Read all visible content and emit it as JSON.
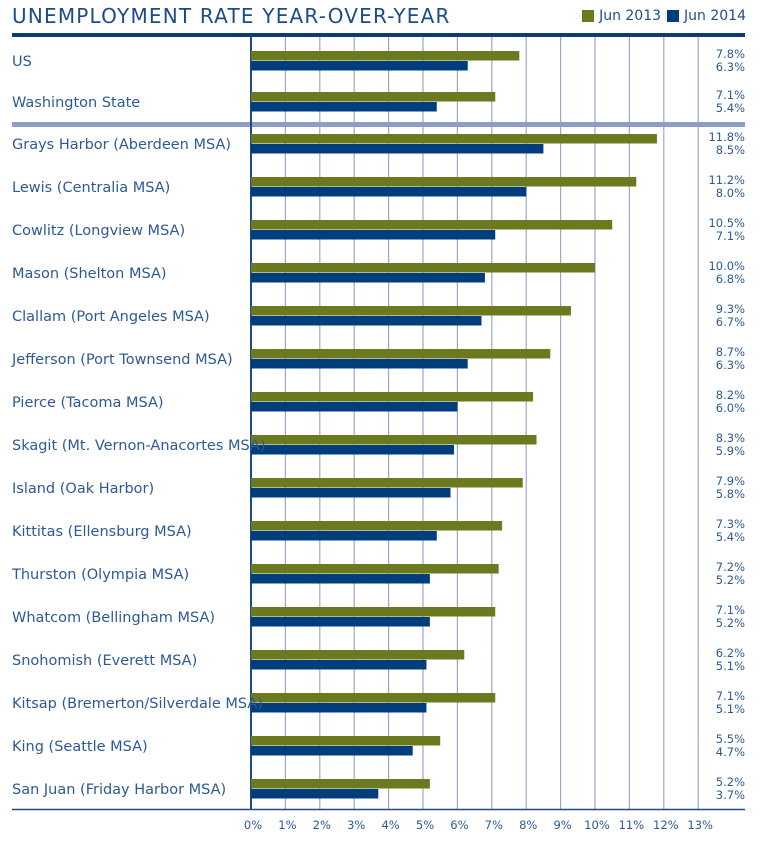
{
  "chart_data": {
    "type": "bar",
    "orientation": "horizontal",
    "title": "UNEMPLOYMENT RATE YEAR-OVER-YEAR",
    "xlabel": "",
    "ylabel": "",
    "xlim": [
      0,
      13
    ],
    "x_ticks": [
      "0%",
      "1%",
      "2%",
      "3%",
      "4%",
      "5%",
      "6%",
      "7%",
      "8%",
      "9%",
      "10%",
      "11%",
      "12%",
      "13%"
    ],
    "grid": true,
    "legend_position": "top-right",
    "categories": [
      "US",
      "Washington State",
      "Grays Harbor (Aberdeen MSA)",
      "Lewis (Centralia MSA)",
      "Cowlitz (Longview MSA)",
      "Mason (Shelton MSA)",
      "Clallam (Port Angeles MSA)",
      "Jefferson (Port Townsend MSA)",
      "Pierce (Tacoma MSA)",
      "Skagit (Mt. Vernon-Anacortes MSA)",
      "Island (Oak Harbor)",
      "Kittitas (Ellensburg MSA)",
      "Thurston (Olympia MSA)",
      "Whatcom (Bellingham MSA)",
      "Snohomish (Everett MSA)",
      "Kitsap (Bremerton/Silverdale MSA)",
      "King (Seattle MSA)",
      "San Juan (Friday Harbor MSA)"
    ],
    "series": [
      {
        "name": "Jun 2013",
        "color": "#6b7a1e",
        "values": [
          7.8,
          7.1,
          11.8,
          11.2,
          10.5,
          10.0,
          9.3,
          8.7,
          8.2,
          8.3,
          7.9,
          7.3,
          7.2,
          7.1,
          6.2,
          7.1,
          5.5,
          5.2
        ],
        "labels": [
          "7.8%",
          "7.1%",
          "11.8%",
          "11.2%",
          "10.5%",
          "10.0%",
          "9.3%",
          "8.7%",
          "8.2%",
          "8.3%",
          "7.9%",
          "7.3%",
          "7.2%",
          "7.1%",
          "6.2%",
          "7.1%",
          "5.5%",
          "5.2%"
        ]
      },
      {
        "name": "Jun 2014",
        "color": "#003d7c",
        "values": [
          6.3,
          5.4,
          8.5,
          8.0,
          7.1,
          6.8,
          6.7,
          6.3,
          6.0,
          5.9,
          5.8,
          5.4,
          5.2,
          5.2,
          5.1,
          5.1,
          4.7,
          3.7
        ],
        "labels": [
          "6.3%",
          "5.4%",
          "8.5%",
          "8.0%",
          "7.1%",
          "6.8%",
          "6.7%",
          "6.3%",
          "6.0%",
          "5.9%",
          "5.8%",
          "5.4%",
          "5.2%",
          "5.2%",
          "5.1%",
          "5.1%",
          "4.7%",
          "3.7%"
        ]
      }
    ],
    "group_separator_after": "Washington State"
  },
  "colors": {
    "title": "#1b4c8a",
    "rule": "#0d3a78",
    "separator": "#8f9ec6",
    "grid": "#9aa8cc",
    "axis": "#1b4c8a",
    "text": "#2d5a95"
  }
}
